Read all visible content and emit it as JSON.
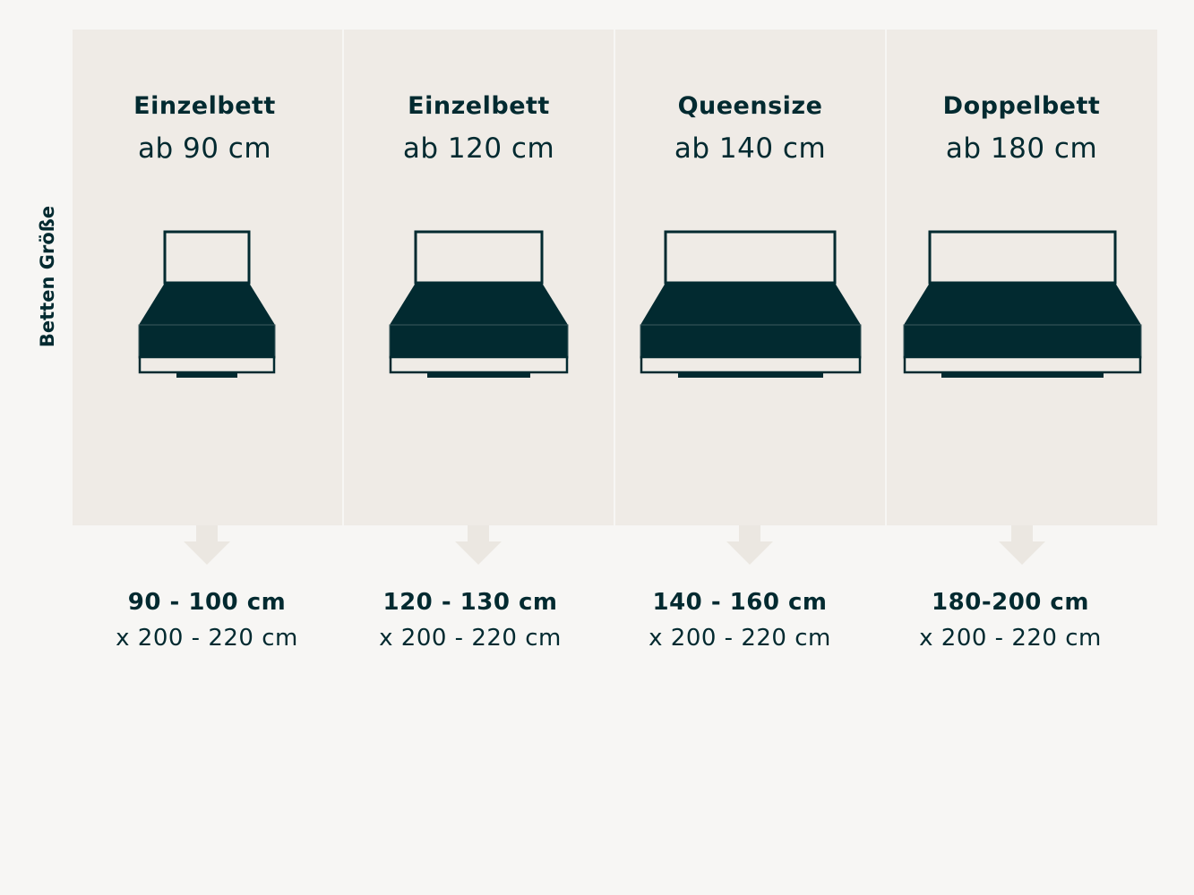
{
  "side_label": "Betten Größe",
  "colors": {
    "background": "#f7f6f4",
    "panel": "#efebe6",
    "bed_dark": "#022a30",
    "arrow": "#ebe7e1"
  },
  "beds": [
    {
      "title": "Einzelbett",
      "min_width": "ab 90 cm",
      "size_range": "90 - 100 cm",
      "length_range": "x 200 - 220 cm"
    },
    {
      "title": "Einzelbett",
      "min_width": "ab 120 cm",
      "size_range": "120 - 130 cm",
      "length_range": "x 200 - 220 cm"
    },
    {
      "title": "Queensize",
      "min_width": "ab 140 cm",
      "size_range": "140 - 160 cm",
      "length_range": "x 200 - 220 cm"
    },
    {
      "title": "Doppelbett",
      "min_width": "ab 180 cm",
      "size_range": "180-200 cm",
      "length_range": "x 200 - 220 cm"
    }
  ]
}
